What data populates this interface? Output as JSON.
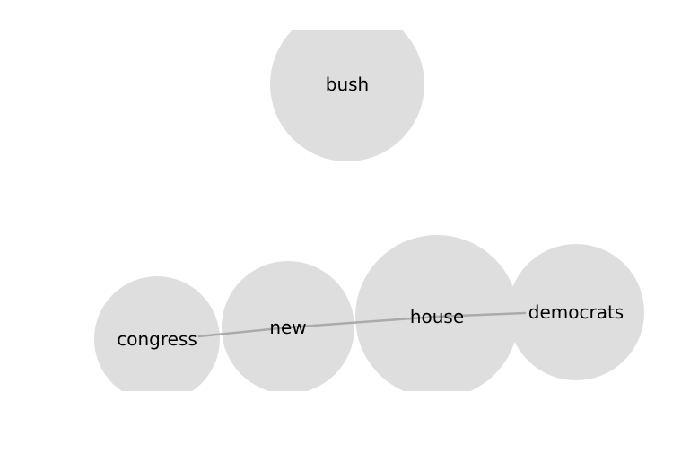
{
  "diagram": {
    "type": "word-bubble-graph",
    "node_color": "#dedede",
    "edge_color": "#aaaaaa",
    "label_color": "#000000",
    "nodes": [
      {
        "id": "bush",
        "label": "bush"
      },
      {
        "id": "congress",
        "label": "congress"
      },
      {
        "id": "new",
        "label": "new"
      },
      {
        "id": "house",
        "label": "house"
      },
      {
        "id": "democrats",
        "label": "democrats"
      }
    ],
    "edges": [
      {
        "from": "congress",
        "to": "new"
      },
      {
        "from": "new",
        "to": "house"
      },
      {
        "from": "house",
        "to": "democrats"
      }
    ]
  }
}
